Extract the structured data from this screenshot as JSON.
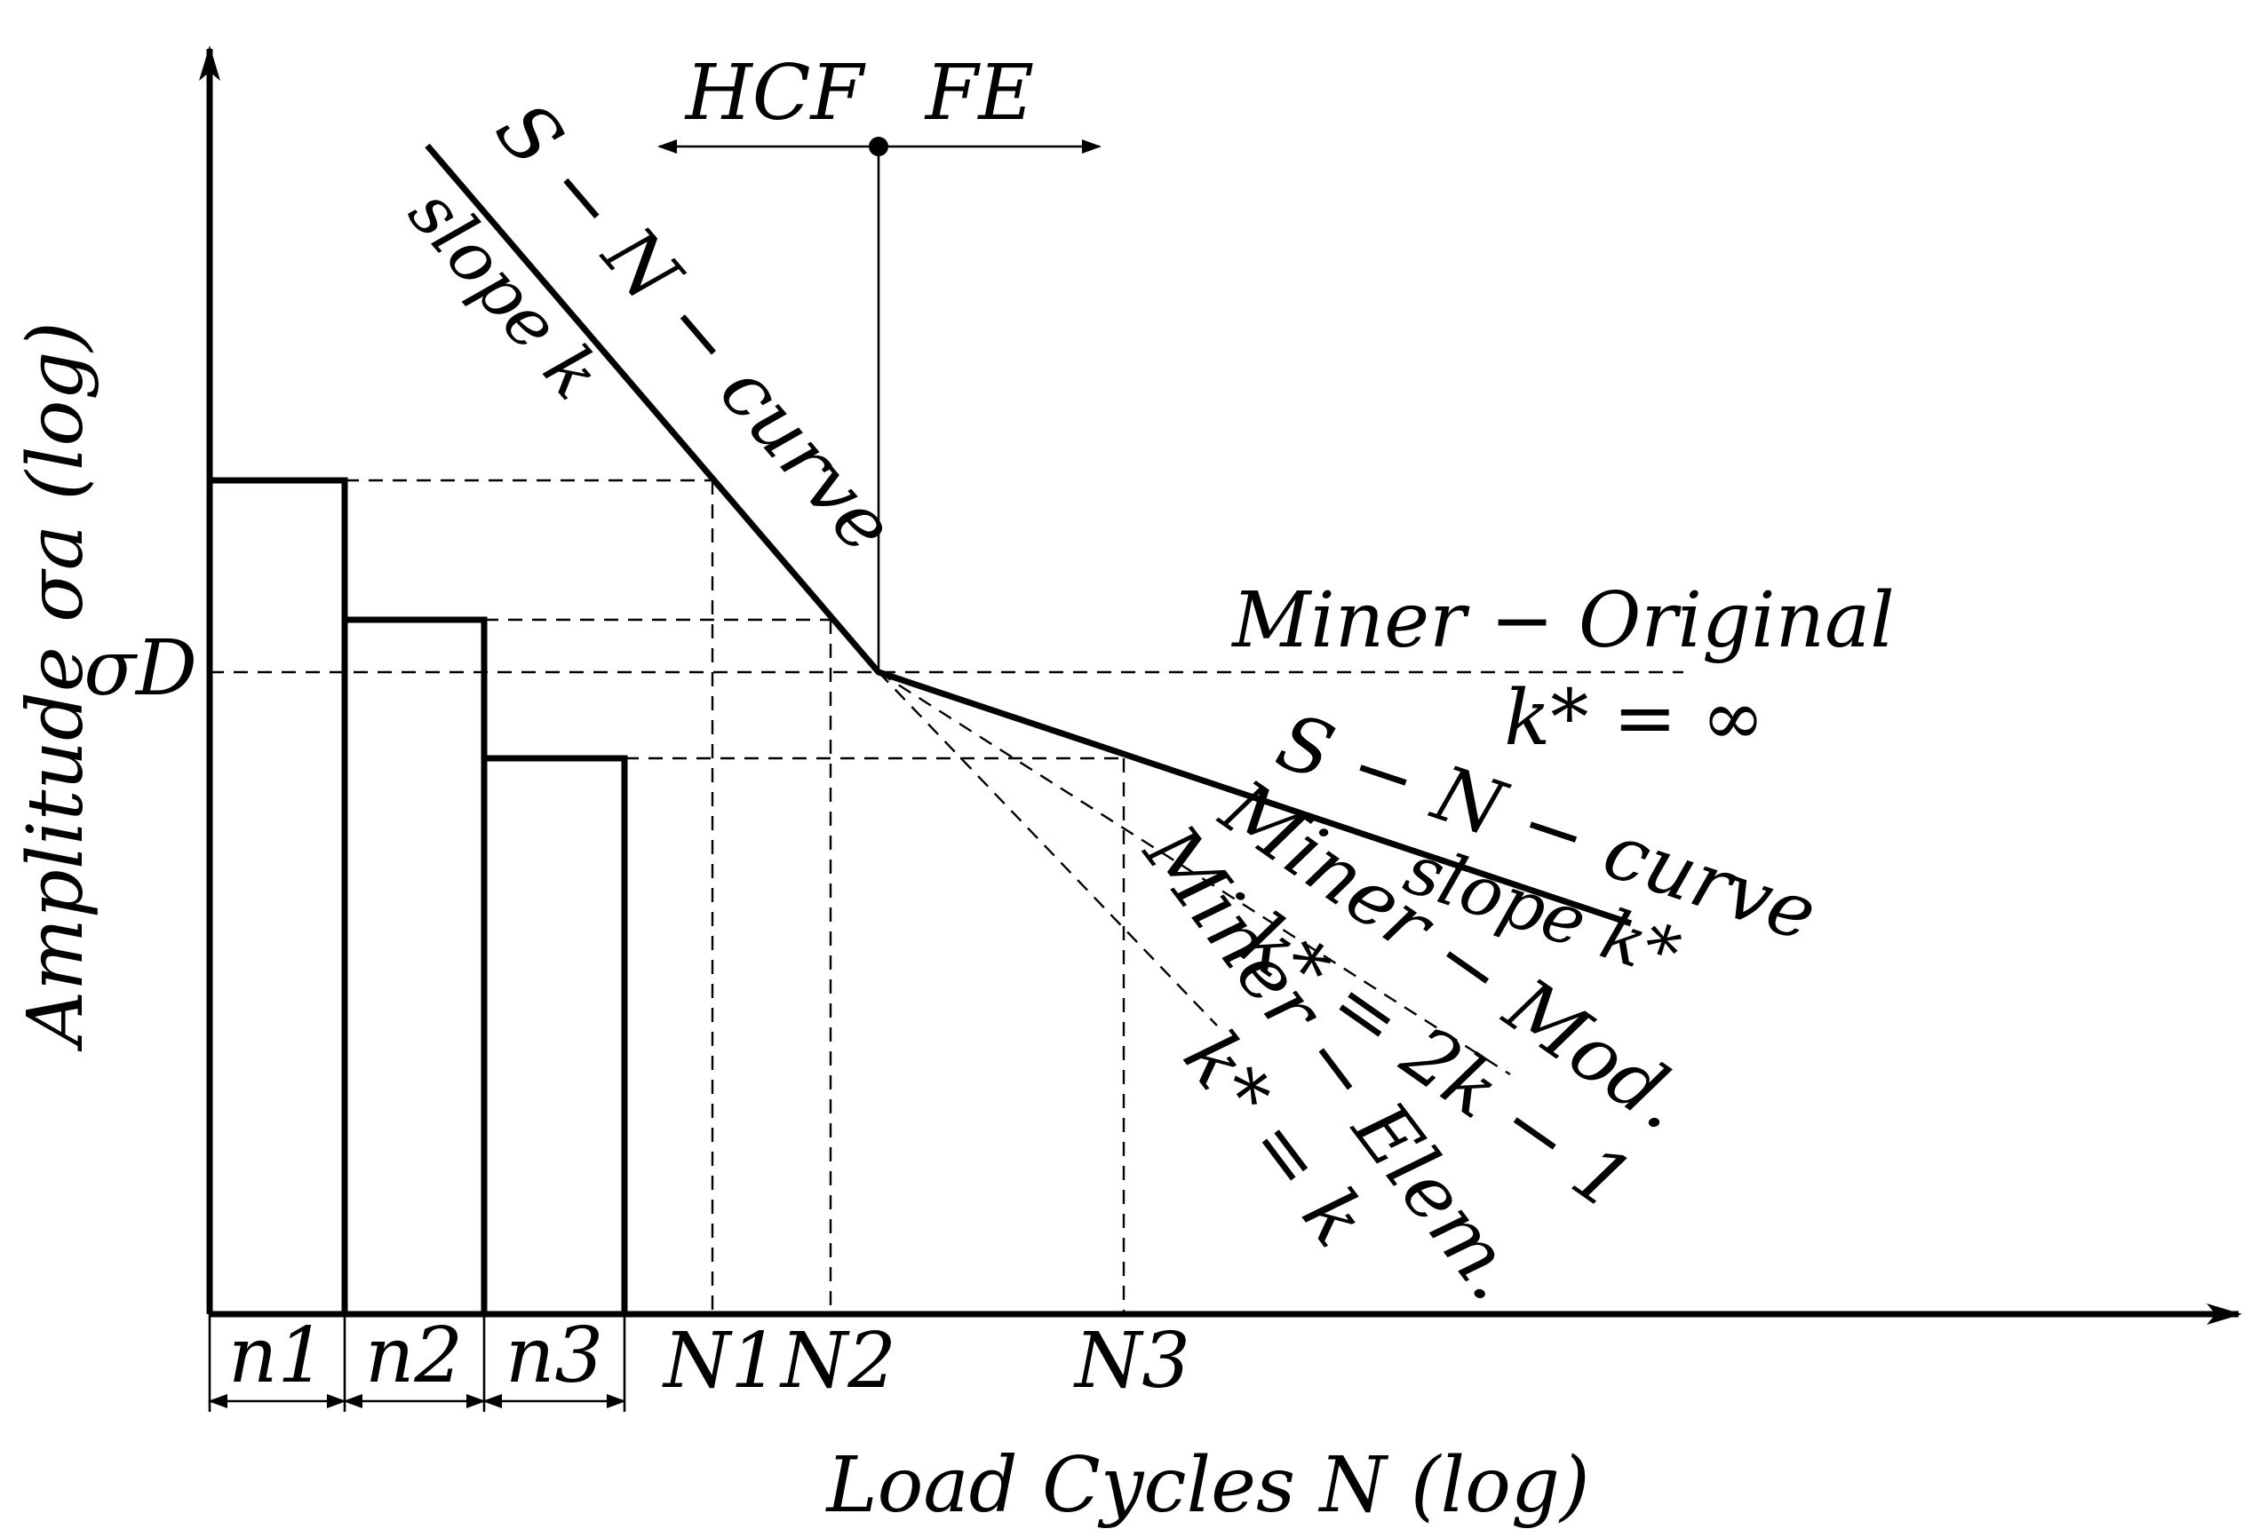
{
  "axes": {
    "y_label": "Amplitude σa (log)",
    "x_label": "Load Cycles N (log)",
    "sigma_d": "σD"
  },
  "regions": {
    "hcf": "HCF",
    "fe": "FE"
  },
  "blocks": [
    {
      "label": "n1"
    },
    {
      "label": "n2"
    },
    {
      "label": "n3"
    }
  ],
  "cycles": [
    {
      "label": "N1"
    },
    {
      "label": "N2"
    },
    {
      "label": "N3"
    }
  ],
  "curves": {
    "sn_upper_name": "S − N − curve",
    "sn_upper_slope": "slope k",
    "miner_original": "Miner − Original",
    "miner_original_k": "k* = ∞",
    "sn_lower_name": "S − N − curve",
    "sn_lower_slope": "slope k*",
    "miner_mod": "Miner − Mod.",
    "miner_mod_k": "k* = 2k − 1",
    "miner_elem": "Miner − Elem.",
    "miner_elem_k": "k* = k"
  }
}
